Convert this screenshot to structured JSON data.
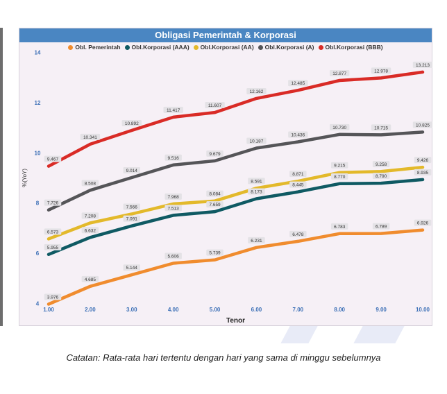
{
  "chart_data": {
    "type": "line",
    "title": "Obligasi Pemerintah & Korporasi",
    "xlabel": "Tenor",
    "ylabel": "%(YoY)",
    "x": [
      "1.00",
      "2.00",
      "3.00",
      "4.00",
      "5.00",
      "6.00",
      "7.00",
      "8.00",
      "9.00",
      "10.00"
    ],
    "ylim": [
      3.3,
      14.7
    ],
    "yticks": [
      4,
      6,
      8,
      10,
      12,
      14
    ],
    "legend_position": "top",
    "series": [
      {
        "name": "Obl. Pemerintah",
        "color": "#f08c2e",
        "values": [
          3.976,
          4.685,
          5.144,
          5.606,
          5.739,
          6.231,
          6.478,
          6.783,
          6.789,
          6.926
        ],
        "labels": [
          "3.976",
          "4.685",
          "5.144",
          "5.606",
          "5.739",
          "6.231",
          "6.478",
          "6.783",
          "6.789",
          "6.926"
        ]
      },
      {
        "name": "Obl.Korporasi (AAA)",
        "color": "#0f5a63",
        "values": [
          5.955,
          6.632,
          7.091,
          7.513,
          7.659,
          8.173,
          8.445,
          8.77,
          8.79,
          8.935
        ],
        "labels": [
          "5.955",
          "6.632",
          "7.091",
          "7.513",
          "7.659",
          "8.173",
          "8.445",
          "8.770",
          "8.790",
          "8.935"
        ]
      },
      {
        "name": "Obl.Korporasi (AA)",
        "color": "#e3b92b",
        "values": [
          6.573,
          7.208,
          7.566,
          7.968,
          8.084,
          8.591,
          8.871,
          9.215,
          9.258,
          9.426
        ],
        "labels": [
          "6.573",
          "7.208",
          "7.566",
          "7.968",
          "8.084",
          "8.591",
          "8.871",
          "9.215",
          "9.258",
          "9.426"
        ]
      },
      {
        "name": "Obl.Korporasi (A)",
        "color": "#555558",
        "values": [
          7.726,
          8.508,
          9.014,
          9.516,
          9.679,
          10.187,
          10.436,
          10.73,
          10.715,
          10.825
        ],
        "labels": [
          "7.726",
          "8.508",
          "9.014",
          "9.516",
          "9.679",
          "10.187",
          "10.436",
          "10.730",
          "10.715",
          "10.825"
        ]
      },
      {
        "name": "Obl.Korporasi (BBB)",
        "color": "#d92b26",
        "values": [
          9.467,
          10.341,
          10.892,
          11.417,
          11.607,
          12.162,
          12.485,
          12.877,
          12.978,
          13.213
        ],
        "labels": [
          "9.467",
          "10.341",
          "10.892",
          "11.417",
          "11.607",
          "12.162",
          "12.485",
          "12.877",
          "12.978",
          "13.213"
        ]
      }
    ]
  },
  "note": "Catatan: Rata-rata hari tertentu dengan hari yang sama di minggu sebelumnya"
}
